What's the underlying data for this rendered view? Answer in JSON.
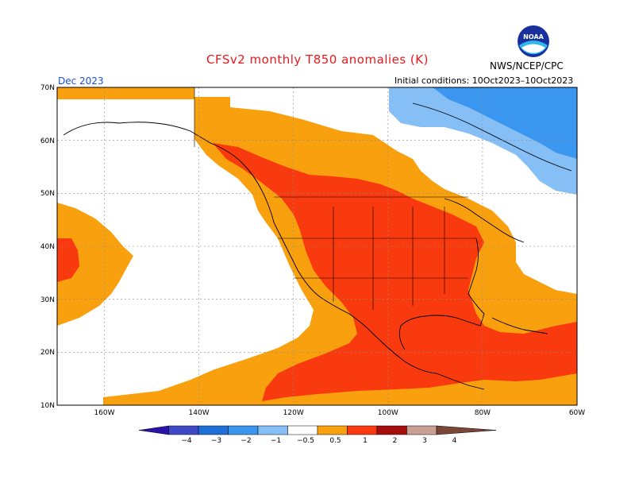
{
  "title": "CFSv2 monthly T850 anomalies (K)",
  "agency": "NWS/NCEP/CPC",
  "logo_text": "NOAA",
  "month": "Dec 2023",
  "initial_conditions": "Initial conditions: 10Oct2023–10Oct2023",
  "lat_labels": [
    "70N",
    "60N",
    "50N",
    "40N",
    "30N",
    "20N",
    "10N"
  ],
  "lon_labels": [
    "160W",
    "140W",
    "120W",
    "100W",
    "80W",
    "60W"
  ],
  "colorbar": {
    "ticks": [
      "−4",
      "−3",
      "−2",
      "−1",
      "−0.5",
      "0.5",
      "1",
      "2",
      "3",
      "4"
    ],
    "colors": [
      "#2a13a6",
      "#3f49c8",
      "#1e6fd8",
      "#3a96ef",
      "#86bff5",
      "#ffffff",
      "#f9a00e",
      "#f93a0f",
      "#a60d0d",
      "#c9a093",
      "#7a4636"
    ]
  },
  "legend_categories": [
    {
      "range": "< -4",
      "color": "#2a13a6"
    },
    {
      "range": "-4 to -3",
      "color": "#3f49c8"
    },
    {
      "range": "-3 to -2",
      "color": "#1e6fd8"
    },
    {
      "range": "-2 to -1",
      "color": "#3a96ef"
    },
    {
      "range": "-1 to -0.5",
      "color": "#86bff5"
    },
    {
      "range": "-0.5 to 0.5",
      "color": "#ffffff"
    },
    {
      "range": "0.5 to 1",
      "color": "#f9a00e"
    },
    {
      "range": "1 to 2",
      "color": "#f93a0f"
    },
    {
      "range": "2 to 3",
      "color": "#a60d0d"
    },
    {
      "range": "3 to 4",
      "color": "#c9a093"
    },
    {
      "range": "> 4",
      "color": "#7a4636"
    }
  ],
  "map_extent": {
    "lon": [
      -170,
      -60
    ],
    "lat": [
      10,
      70
    ]
  }
}
